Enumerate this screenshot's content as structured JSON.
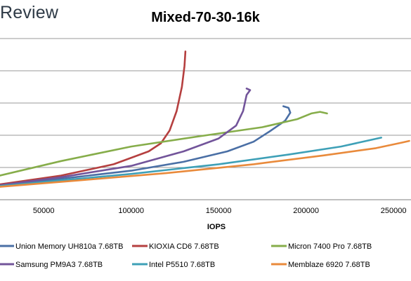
{
  "brand": "Review",
  "chart_data": {
    "type": "line",
    "title": "Mixed-70-30-16k",
    "xlabel": "IOPS",
    "ylabel": "",
    "xlim": [
      25000,
      260000
    ],
    "x_ticks": [
      50000,
      100000,
      150000,
      200000,
      250000
    ],
    "x_tick_labels": [
      "50000",
      "100000",
      "150000",
      "200000",
      "250000"
    ],
    "ylim": [
      0,
      1
    ],
    "y_grid_count": 5,
    "grid": true,
    "legend_position": "bottom",
    "series": [
      {
        "name": "Union Memory UH810a 7.68TB",
        "color": "#4a6fa5",
        "points": [
          [
            25000,
            0.09
          ],
          [
            60000,
            0.13
          ],
          [
            100000,
            0.18
          ],
          [
            130000,
            0.235
          ],
          [
            155000,
            0.3
          ],
          [
            170000,
            0.36
          ],
          [
            180000,
            0.43
          ],
          [
            188000,
            0.49
          ],
          [
            191000,
            0.54
          ],
          [
            190000,
            0.57
          ],
          [
            187000,
            0.58
          ]
        ]
      },
      {
        "name": "KIOXIA CD6 7.68TB",
        "color": "#b53f3f",
        "points": [
          [
            25000,
            0.095
          ],
          [
            60000,
            0.15
          ],
          [
            90000,
            0.22
          ],
          [
            110000,
            0.3
          ],
          [
            117000,
            0.35
          ],
          [
            122000,
            0.43
          ],
          [
            126000,
            0.55
          ],
          [
            129000,
            0.7
          ],
          [
            130500,
            0.83
          ],
          [
            131000,
            0.92
          ]
        ]
      },
      {
        "name": "Micron 7400 Pro 7.68TB",
        "color": "#86ad4a",
        "points": [
          [
            25000,
            0.15
          ],
          [
            60000,
            0.24
          ],
          [
            100000,
            0.33
          ],
          [
            140000,
            0.395
          ],
          [
            175000,
            0.45
          ],
          [
            195000,
            0.5
          ],
          [
            203000,
            0.535
          ],
          [
            208000,
            0.545
          ],
          [
            212000,
            0.535
          ]
        ]
      },
      {
        "name": "Samsung PM9A3 7.68TB",
        "color": "#72549a",
        "points": [
          [
            25000,
            0.09
          ],
          [
            60000,
            0.14
          ],
          [
            100000,
            0.21
          ],
          [
            130000,
            0.3
          ],
          [
            150000,
            0.38
          ],
          [
            160000,
            0.46
          ],
          [
            164000,
            0.55
          ],
          [
            166000,
            0.65
          ],
          [
            168000,
            0.68
          ],
          [
            166000,
            0.69
          ]
        ]
      },
      {
        "name": "Intel P5510 7.68TB",
        "color": "#3ea0b7",
        "points": [
          [
            25000,
            0.085
          ],
          [
            60000,
            0.12
          ],
          [
            100000,
            0.16
          ],
          [
            150000,
            0.22
          ],
          [
            190000,
            0.28
          ],
          [
            220000,
            0.33
          ],
          [
            243000,
            0.385
          ]
        ]
      },
      {
        "name": "Memblaze 6920 7.68TB",
        "color": "#e98a3b",
        "points": [
          [
            25000,
            0.08
          ],
          [
            70000,
            0.12
          ],
          [
            120000,
            0.165
          ],
          [
            170000,
            0.22
          ],
          [
            210000,
            0.275
          ],
          [
            240000,
            0.32
          ],
          [
            255000,
            0.355
          ],
          [
            259000,
            0.365
          ]
        ]
      }
    ]
  }
}
